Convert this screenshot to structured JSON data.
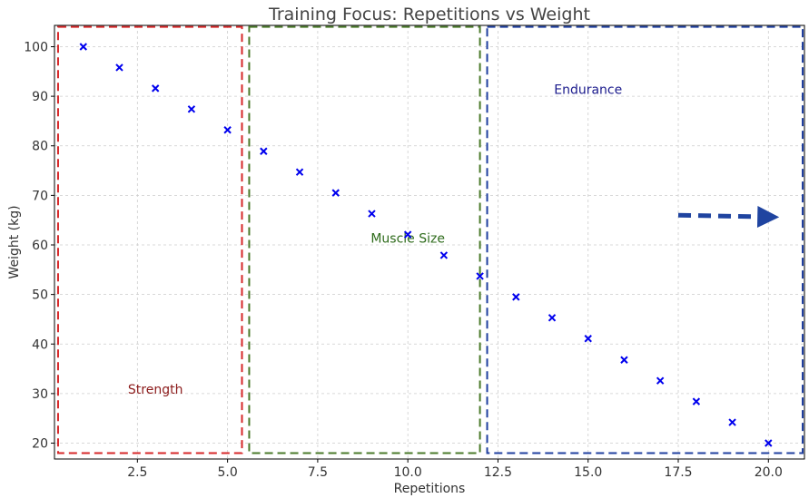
{
  "chart_data": {
    "type": "scatter",
    "title": "Training Focus: Repetitions vs Weight",
    "xlabel": "Repetitions",
    "ylabel": "Weight (kg)",
    "xlim": [
      0.2,
      21.0
    ],
    "ylim": [
      16.8,
      104.3
    ],
    "xticks": [
      2.5,
      5.0,
      7.5,
      10.0,
      12.5,
      15.0,
      17.5,
      20.0
    ],
    "xtick_labels": [
      "2.5",
      "5.0",
      "7.5",
      "10.0",
      "12.5",
      "15.0",
      "17.5",
      "20.0"
    ],
    "yticks": [
      20,
      30,
      40,
      50,
      60,
      70,
      80,
      90,
      100
    ],
    "ytick_labels": [
      "20",
      "30",
      "40",
      "50",
      "60",
      "70",
      "80",
      "90",
      "100"
    ],
    "grid": true,
    "marker": "x",
    "series": [
      {
        "color": "#0000ee",
        "x": [
          1,
          2,
          3,
          4,
          5,
          6,
          7,
          8,
          9,
          10,
          11,
          12,
          13,
          14,
          15,
          16,
          17,
          18,
          19,
          20
        ],
        "y": [
          100.0,
          95.8,
          91.6,
          87.4,
          83.2,
          78.9,
          74.7,
          70.5,
          66.3,
          62.1,
          57.9,
          53.7,
          49.5,
          45.3,
          41.1,
          36.8,
          32.6,
          28.4,
          24.2,
          20.0
        ]
      }
    ],
    "regions": [
      {
        "label": "Strength",
        "x_range": [
          0.3,
          5.4
        ],
        "y_range": [
          18.0,
          104.0
        ],
        "color": "#d62728",
        "label_color": "#8b1a1a",
        "label_at": [
          3.0,
          30.0
        ]
      },
      {
        "label": "Muscle Size",
        "x_range": [
          5.6,
          12.0
        ],
        "y_range": [
          18.0,
          104.0
        ],
        "color": "#4a7a2a",
        "label_color": "#2e6b1b",
        "label_at": [
          10.0,
          60.5
        ]
      },
      {
        "label": "Endurance",
        "x_range": [
          12.2,
          20.95
        ],
        "y_range": [
          18.0,
          104.0
        ],
        "color": "#1f3f9f",
        "label_color": "#1a1a8c",
        "label_at": [
          15.0,
          90.5
        ]
      }
    ],
    "arrow": {
      "from": [
        17.5,
        66.0
      ],
      "to": [
        20.3,
        65.6
      ],
      "color": "#1f44a0",
      "style": "dashed"
    }
  }
}
